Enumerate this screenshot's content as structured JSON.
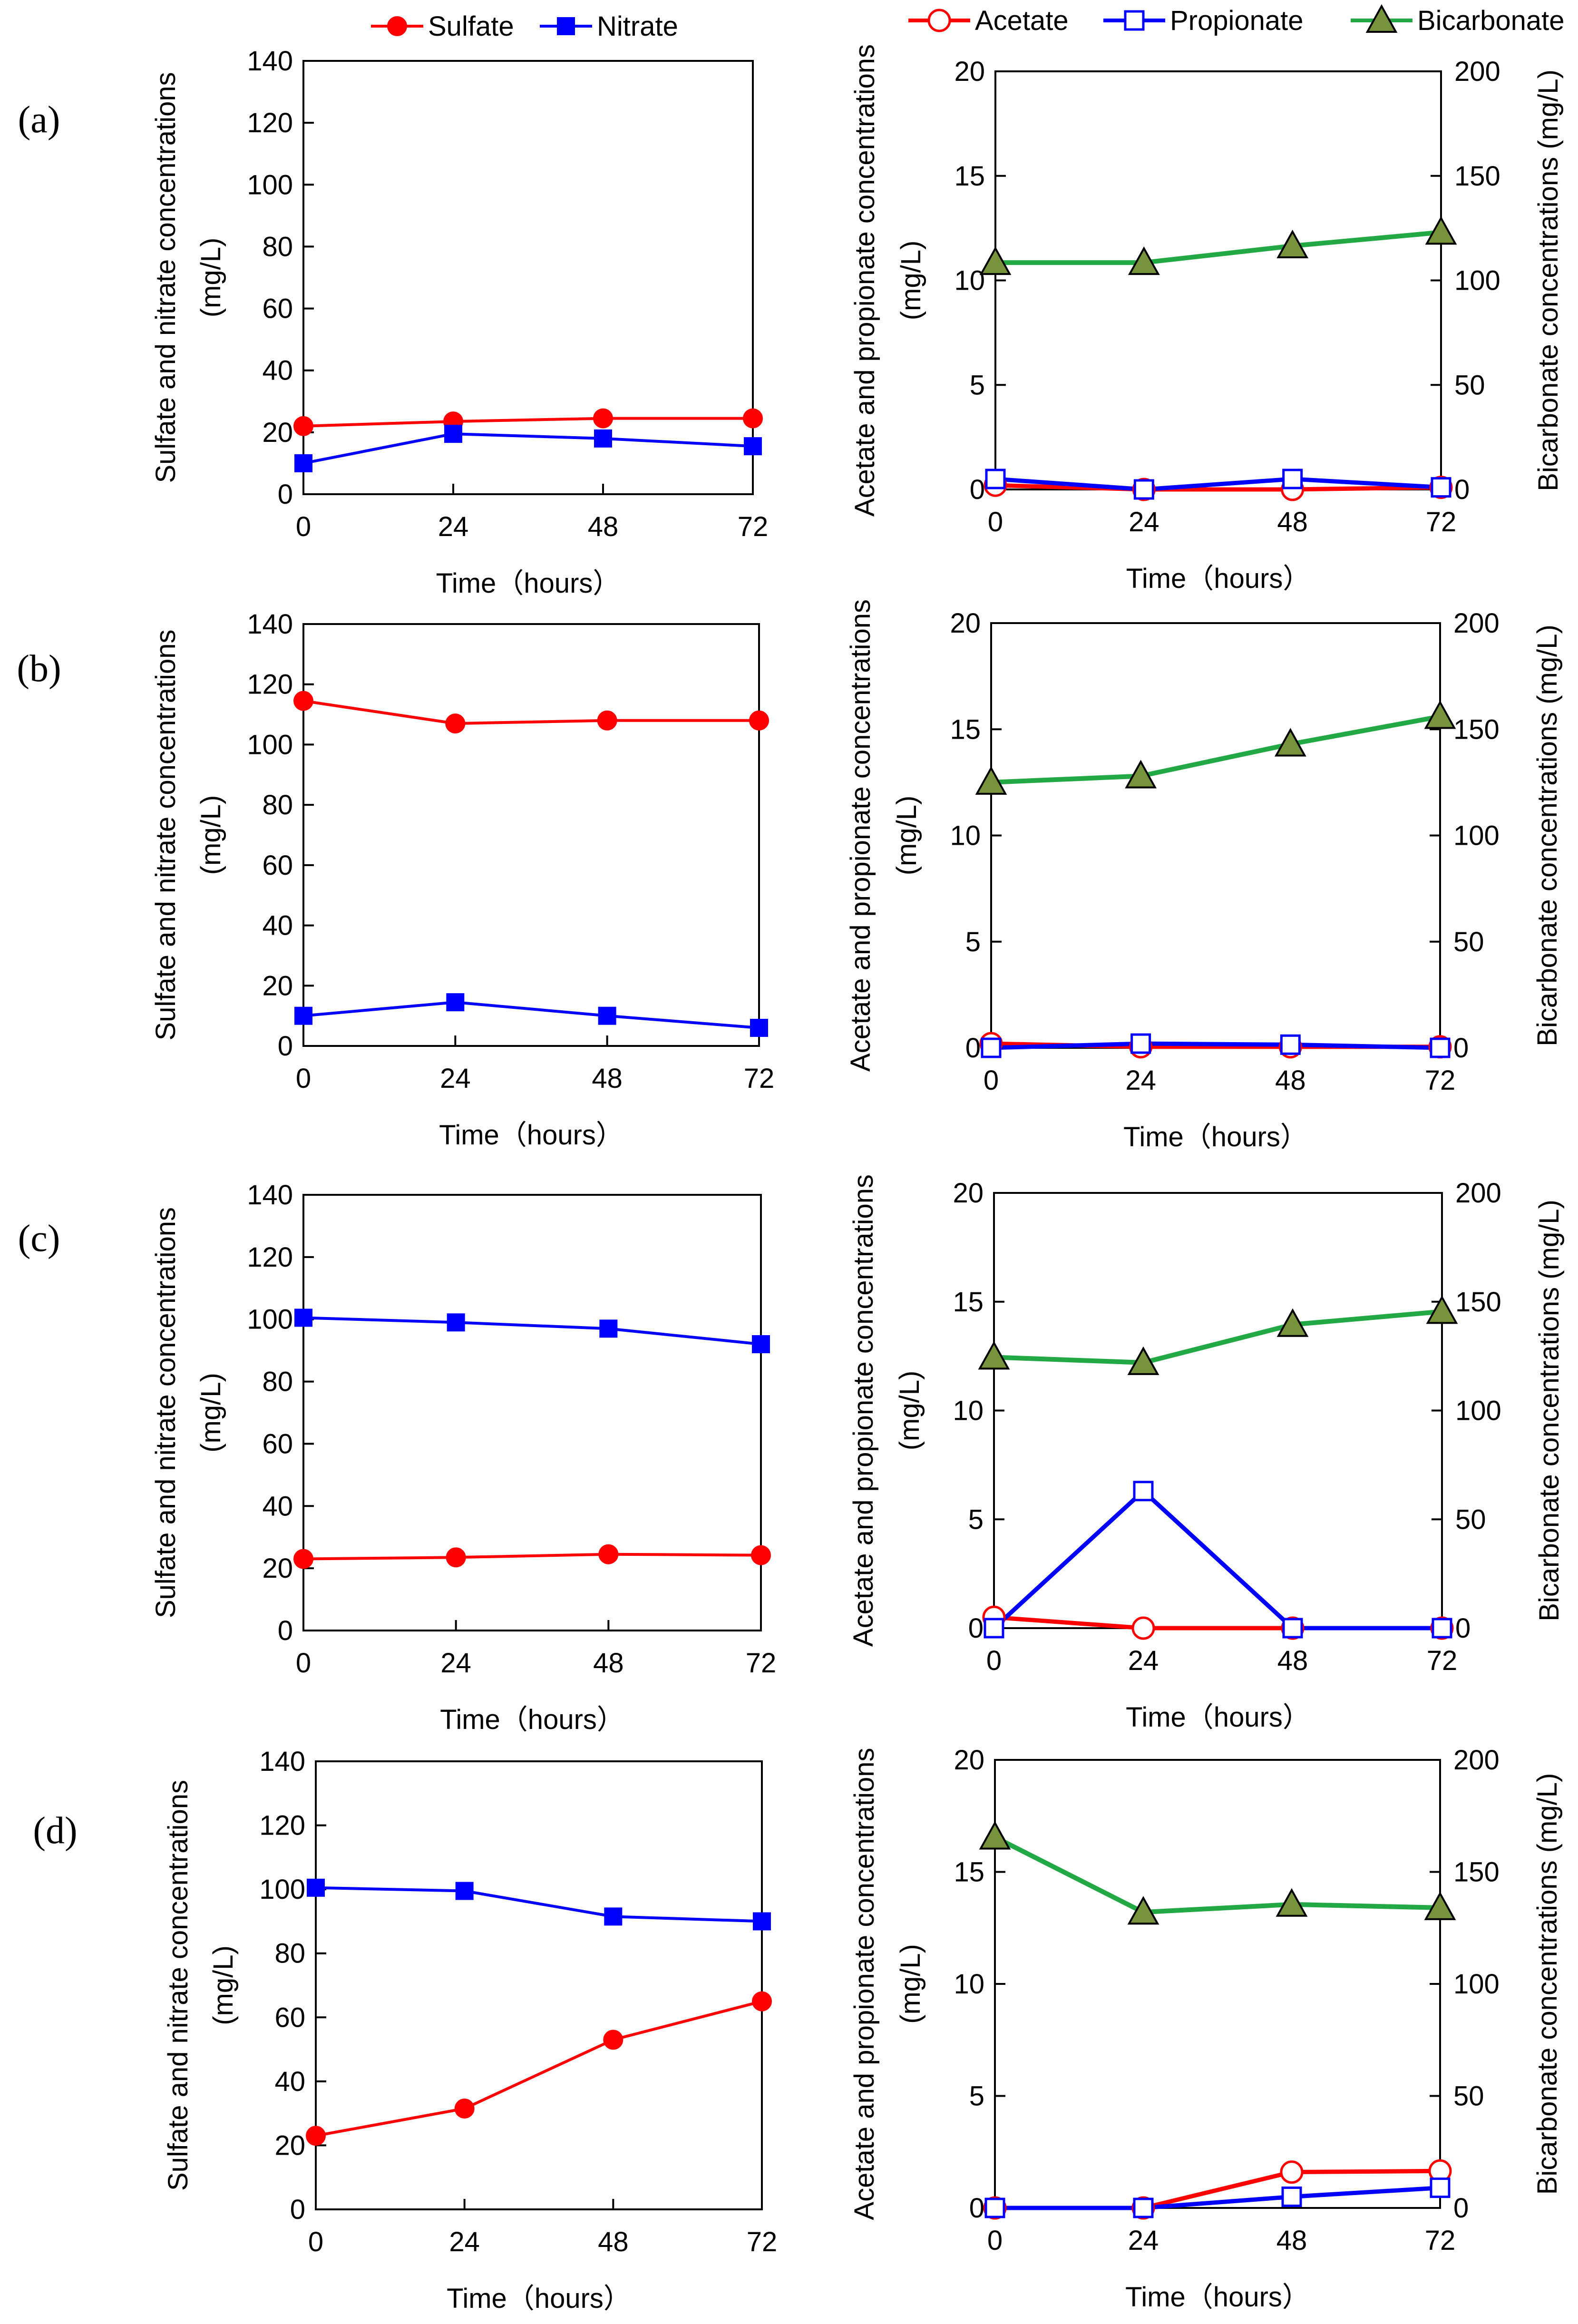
{
  "legend": {
    "left": [
      {
        "name": "Sulfate",
        "color": "#ff0000",
        "marker": "filled-circle"
      },
      {
        "name": "Nitrate",
        "color": "#0000ff",
        "marker": "filled-square"
      }
    ],
    "right": [
      {
        "name": "Acetate",
        "color": "#ff0000",
        "marker": "open-circle"
      },
      {
        "name": "Propionate",
        "color": "#0000ff",
        "marker": "open-square"
      },
      {
        "name": "Bicarbonate",
        "color": "#22a945",
        "marker": "triangle",
        "fill": "#77933c"
      }
    ]
  },
  "labels": {
    "time_axis": "Time（hours）",
    "left_y_line1": "Sulfate and nitrate concentrations",
    "left_y_line2": "(mg/L)",
    "right_y_line1": "Acetate and propionate concentrations",
    "right_y_line2": "(mg/L)",
    "right_y2": "Bicarbonate concentrations  (mg/L)"
  },
  "chart_data": [
    {
      "panel": "(a)",
      "side": "left",
      "type": "line",
      "x": [
        0,
        24,
        48,
        72
      ],
      "xticks": [
        "0",
        "24",
        "48",
        "72"
      ],
      "ylim": [
        0,
        140
      ],
      "yticks": [
        "0",
        "20",
        "40",
        "60",
        "80",
        "100",
        "120",
        "140"
      ],
      "series": [
        {
          "name": "Sulfate",
          "values": [
            22,
            23.5,
            24.5,
            24.5
          ]
        },
        {
          "name": "Nitrate",
          "values": [
            10,
            19.5,
            18,
            15.5
          ]
        }
      ]
    },
    {
      "panel": "(a)",
      "side": "right",
      "type": "line",
      "x": [
        0,
        24,
        48,
        72
      ],
      "xticks": [
        "0",
        "24",
        "48",
        "72"
      ],
      "ylim": [
        0,
        20
      ],
      "yticks": [
        "0",
        "5",
        "10",
        "15",
        "20"
      ],
      "y2lim": [
        0,
        200
      ],
      "y2ticks": [
        "0",
        "50",
        "100",
        "150",
        "200"
      ],
      "series": [
        {
          "name": "Acetate",
          "values": [
            0.2,
            0.0,
            0.0,
            0.1
          ]
        },
        {
          "name": "Propionate",
          "values": [
            0.5,
            0.0,
            0.5,
            0.1
          ]
        },
        {
          "name": "Bicarbonate",
          "axis": "y2",
          "values": [
            108.5,
            108.5,
            116.5,
            123
          ]
        }
      ]
    },
    {
      "panel": "(b)",
      "side": "left",
      "type": "line",
      "x": [
        0,
        24,
        48,
        72
      ],
      "xticks": [
        "0",
        "24",
        "48",
        "72"
      ],
      "ylim": [
        0,
        140
      ],
      "yticks": [
        "0",
        "20",
        "40",
        "60",
        "80",
        "100",
        "120",
        "140"
      ],
      "series": [
        {
          "name": "Sulfate",
          "values": [
            114.5,
            107,
            108,
            108
          ]
        },
        {
          "name": "Nitrate",
          "values": [
            10,
            14.5,
            10,
            6
          ]
        }
      ]
    },
    {
      "panel": "(b)",
      "side": "right",
      "type": "line",
      "x": [
        0,
        24,
        48,
        72
      ],
      "xticks": [
        "0",
        "24",
        "48",
        "72"
      ],
      "ylim": [
        0,
        20
      ],
      "yticks": [
        "0",
        "5",
        "10",
        "15",
        "20"
      ],
      "y2lim": [
        0,
        200
      ],
      "y2ticks": [
        "0",
        "50",
        "100",
        "150",
        "200"
      ],
      "series": [
        {
          "name": "Acetate",
          "values": [
            0.2,
            0.05,
            0.05,
            0.05
          ]
        },
        {
          "name": "Propionate",
          "values": [
            0.0,
            0.2,
            0.15,
            0.0
          ]
        },
        {
          "name": "Bicarbonate",
          "axis": "y2",
          "values": [
            125,
            128,
            143,
            156
          ]
        }
      ]
    },
    {
      "panel": "(c)",
      "side": "left",
      "type": "line",
      "x": [
        0,
        24,
        48,
        72
      ],
      "xticks": [
        "0",
        "24",
        "48",
        "72"
      ],
      "ylim": [
        0,
        140
      ],
      "yticks": [
        "0",
        "20",
        "40",
        "60",
        "80",
        "100",
        "120",
        "140"
      ],
      "series": [
        {
          "name": "Sulfate",
          "values": [
            23,
            23.5,
            24.5,
            24.2
          ]
        },
        {
          "name": "Nitrate",
          "values": [
            100.5,
            99,
            97,
            92
          ]
        }
      ]
    },
    {
      "panel": "(c)",
      "side": "right",
      "type": "line",
      "x": [
        0,
        24,
        48,
        72
      ],
      "xticks": [
        "0",
        "24",
        "48",
        "72"
      ],
      "ylim": [
        0,
        20
      ],
      "yticks": [
        "0",
        "5",
        "10",
        "15",
        "20"
      ],
      "y2lim": [
        0,
        200
      ],
      "y2ticks": [
        "0",
        "50",
        "100",
        "150",
        "200"
      ],
      "series": [
        {
          "name": "Acetate",
          "values": [
            0.5,
            0.0,
            0.0,
            0.0
          ]
        },
        {
          "name": "Propionate",
          "values": [
            0.0,
            6.3,
            0.0,
            0.0
          ]
        },
        {
          "name": "Bicarbonate",
          "axis": "y2",
          "values": [
            124.5,
            122,
            139.5,
            145.5
          ]
        }
      ]
    },
    {
      "panel": "(d)",
      "side": "left",
      "type": "line",
      "x": [
        0,
        24,
        48,
        72
      ],
      "xticks": [
        "0",
        "24",
        "48",
        "72"
      ],
      "ylim": [
        0,
        140
      ],
      "yticks": [
        "0",
        "20",
        "40",
        "60",
        "80",
        "100",
        "120",
        "140"
      ],
      "series": [
        {
          "name": "Sulfate",
          "values": [
            23,
            31.5,
            53,
            65
          ]
        },
        {
          "name": "Nitrate",
          "values": [
            100.5,
            99.5,
            91.5,
            90
          ]
        }
      ]
    },
    {
      "panel": "(d)",
      "side": "right",
      "type": "line",
      "x": [
        0,
        24,
        48,
        72
      ],
      "xticks": [
        "0",
        "24",
        "48",
        "72"
      ],
      "ylim": [
        0,
        20
      ],
      "yticks": [
        "0",
        "5",
        "10",
        "15",
        "20"
      ],
      "y2lim": [
        0,
        200
      ],
      "y2ticks": [
        "0",
        "50",
        "100",
        "150",
        "200"
      ],
      "series": [
        {
          "name": "Acetate",
          "values": [
            0.0,
            0.0,
            1.6,
            1.65
          ]
        },
        {
          "name": "Propionate",
          "values": [
            0.0,
            0.0,
            0.5,
            0.9
          ]
        },
        {
          "name": "Bicarbonate",
          "axis": "y2",
          "values": [
            165.5,
            132,
            135.5,
            134
          ]
        }
      ]
    }
  ]
}
